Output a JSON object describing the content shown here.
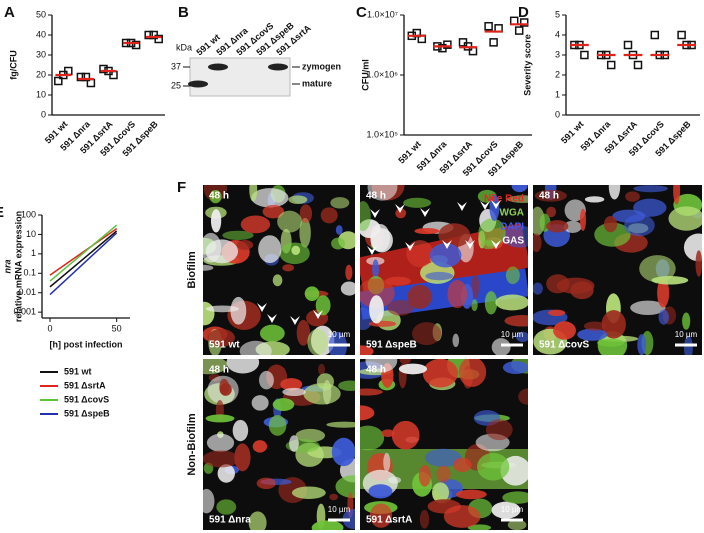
{
  "chart_data": [
    {
      "panel": "A",
      "type": "dot",
      "ylabel": "fg/CFU",
      "categories": [
        "591 wt",
        "591 Δnra",
        "591 ΔsrtA",
        "591 ΔcovS",
        "591 ΔspeB"
      ],
      "values": [
        [
          17,
          22,
          20
        ],
        [
          19,
          16,
          19
        ],
        [
          23,
          20,
          22
        ],
        [
          36,
          35,
          36
        ],
        [
          40,
          38,
          40
        ]
      ],
      "means": [
        20,
        18,
        22,
        36,
        39
      ],
      "ylim": [
        0,
        50
      ],
      "yticks": [
        0,
        10,
        20,
        30,
        40,
        50
      ],
      "log": false,
      "color": "#111111",
      "mean_color": "#e0241b"
    },
    {
      "panel": "C",
      "type": "dot",
      "ylabel": "CFU/ml",
      "categories": [
        "591 wt",
        "591 Δnra",
        "591 ΔsrtA",
        "591 ΔcovS",
        "591 ΔspeB"
      ],
      "values": [
        [
          4500000,
          4000000,
          5000000
        ],
        [
          3000000,
          3200000,
          2800000
        ],
        [
          3500000,
          2500000,
          3000000
        ],
        [
          6500000,
          6000000,
          3500000
        ],
        [
          8000000,
          7500000,
          5500000
        ]
      ],
      "means": [
        4500000,
        3000000,
        2900000,
        5300000,
        7000000
      ],
      "ylim": [
        100000,
        10000000
      ],
      "yticks": [
        {
          "value": 100000,
          "label": "1.0×10⁵"
        },
        {
          "value": 1000000,
          "label": "1.0×10⁶"
        },
        {
          "value": 10000000,
          "label": "1.0×10⁷"
        }
      ],
      "log": true,
      "color": "#111111",
      "mean_color": "#e0241b"
    },
    {
      "panel": "D",
      "type": "dot",
      "ylabel": "Severity score",
      "categories": [
        "591 wt",
        "591 Δnra",
        "591 ΔsrtA",
        "591 ΔcovS",
        "591 ΔspeB"
      ],
      "values": [
        [
          3.5,
          3,
          3.5
        ],
        [
          3,
          2.5,
          3
        ],
        [
          3.5,
          2.5,
          3
        ],
        [
          4,
          3,
          3
        ],
        [
          4,
          3.5,
          3.5
        ]
      ],
      "means": [
        3.5,
        3,
        3,
        3,
        3.5
      ],
      "ylim": [
        0,
        5
      ],
      "yticks": [
        0,
        1,
        2,
        3,
        4,
        5
      ],
      "log": false,
      "color": "#111111",
      "mean_color": "#e0241b"
    },
    {
      "panel": "E",
      "type": "line",
      "ylabel": [
        "nra",
        "relative mRNA expression"
      ],
      "xlabel": "[h] post infection",
      "x": [
        0,
        50
      ],
      "xlim": [
        -6,
        60
      ],
      "xticks": [
        0,
        50
      ],
      "ylim": [
        0.0005,
        100
      ],
      "yticks": [
        0.001,
        0.01,
        0.1,
        1,
        10,
        100
      ],
      "log": true,
      "series": [
        {
          "name": "591 wt",
          "color": "#111111",
          "values": [
            0.02,
            15
          ]
        },
        {
          "name": "591 ΔsrtA",
          "color": "#e0241b",
          "values": [
            0.08,
            20
          ]
        },
        {
          "name": "591 ΔcovS",
          "color": "#5cc23a",
          "values": [
            0.04,
            30
          ]
        },
        {
          "name": "591 ΔspeB",
          "color": "#2230b0",
          "values": [
            0.008,
            12
          ]
        }
      ]
    }
  ],
  "blot": {
    "panel": "B",
    "unit": "kDa",
    "markers": [
      37,
      25
    ],
    "lanes": [
      "591 wt",
      "591 Δnra",
      "591 ΔcovS",
      "591 ΔspeB",
      "591 ΔsrtA"
    ],
    "bands": [
      "zymogen",
      "mature"
    ]
  },
  "micrographs": {
    "panel": "F",
    "legend": [
      {
        "name": "Nile Red",
        "color": "#e8261f"
      },
      {
        "name": "WGA",
        "color": "#8fd14f"
      },
      {
        "name": "DAPI",
        "color": "#3a5cff"
      },
      {
        "name": "GAS",
        "color": "#ffffff"
      }
    ],
    "rows": [
      {
        "label": "Biofilm",
        "images": [
          {
            "time": "48 h",
            "strain": "591 wt",
            "scale": "10 µm"
          },
          {
            "time": "48 h",
            "strain": "591 ΔspeB",
            "scale": "10 µm"
          },
          {
            "time": "48 h",
            "strain": "591 ΔcovS",
            "scale": "10 µm"
          }
        ]
      },
      {
        "label": "Non-Biofilm",
        "images": [
          {
            "time": "48 h",
            "strain": "591 Δnra",
            "scale": "10 µm"
          },
          {
            "time": "48 h",
            "strain": "591 ΔsrtA",
            "scale": "10 µm"
          }
        ]
      }
    ]
  }
}
